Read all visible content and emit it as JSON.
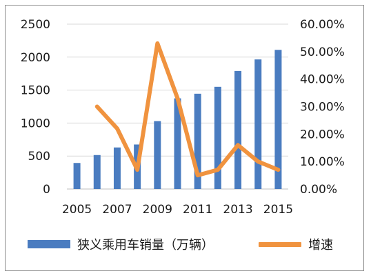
{
  "chart_data": {
    "type": "bar",
    "categories": [
      "2005",
      "2006",
      "2007",
      "2008",
      "2009",
      "2010",
      "2011",
      "2012",
      "2013",
      "2014",
      "2015"
    ],
    "x_tick_labels": [
      "2005",
      "2007",
      "2009",
      "2011",
      "2013",
      "2015"
    ],
    "series": [
      {
        "name": "狭义乘用车销量（万辆）",
        "type": "bar",
        "axis": "left",
        "color": "#4a7cc0",
        "values": [
          395,
          515,
          630,
          675,
          1030,
          1375,
          1445,
          1550,
          1790,
          1965,
          2110
        ]
      },
      {
        "name": "增速",
        "type": "line",
        "axis": "right",
        "color": "#f0933f",
        "values": [
          null,
          0.3,
          0.22,
          0.07,
          0.53,
          0.33,
          0.05,
          0.07,
          0.16,
          0.1,
          0.07
        ]
      }
    ],
    "y_left": {
      "min": 0,
      "max": 2500,
      "ticks": [
        "0",
        "500",
        "1000",
        "1500",
        "2000",
        "2500"
      ]
    },
    "y_right": {
      "min": 0,
      "max": 0.6,
      "ticks": [
        "0.00%",
        "10.00%",
        "20.00%",
        "30.00%",
        "40.00%",
        "50.00%",
        "60.00%"
      ]
    },
    "grid": true,
    "legend_position": "bottom"
  }
}
